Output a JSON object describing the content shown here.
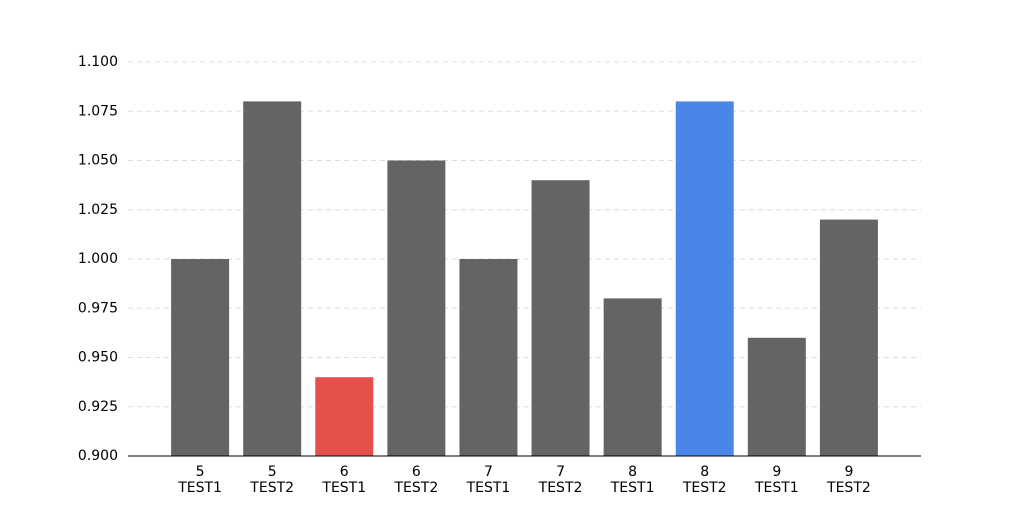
{
  "chart_data": {
    "type": "bar",
    "categories": [
      [
        "5",
        "TEST1"
      ],
      [
        "5",
        "TEST2"
      ],
      [
        "6",
        "TEST1"
      ],
      [
        "6",
        "TEST2"
      ],
      [
        "7",
        "TEST1"
      ],
      [
        "7",
        "TEST2"
      ],
      [
        "8",
        "TEST1"
      ],
      [
        "8",
        "TEST2"
      ],
      [
        "9",
        "TEST1"
      ],
      [
        "9",
        "TEST2"
      ]
    ],
    "values": [
      1.0,
      1.08,
      0.94,
      1.05,
      1.0,
      1.04,
      0.98,
      1.08,
      0.96,
      1.02
    ],
    "colors": [
      "#646464",
      "#646464",
      "#e5504a",
      "#646464",
      "#646464",
      "#646464",
      "#646464",
      "#4a86e8",
      "#646464",
      "#646464"
    ],
    "ylim": [
      0.9,
      1.1
    ],
    "yticks": [
      {
        "value": 0.9,
        "label": "0.900"
      },
      {
        "value": 0.925,
        "label": "0.925"
      },
      {
        "value": 0.95,
        "label": "0.950"
      },
      {
        "value": 0.975,
        "label": "0.975"
      },
      {
        "value": 1.0,
        "label": "1.000"
      },
      {
        "value": 1.025,
        "label": "1.025"
      },
      {
        "value": 1.05,
        "label": "1.050"
      },
      {
        "value": 1.075,
        "label": "1.075"
      },
      {
        "value": 1.1,
        "label": "1.100"
      }
    ],
    "grid": true
  }
}
